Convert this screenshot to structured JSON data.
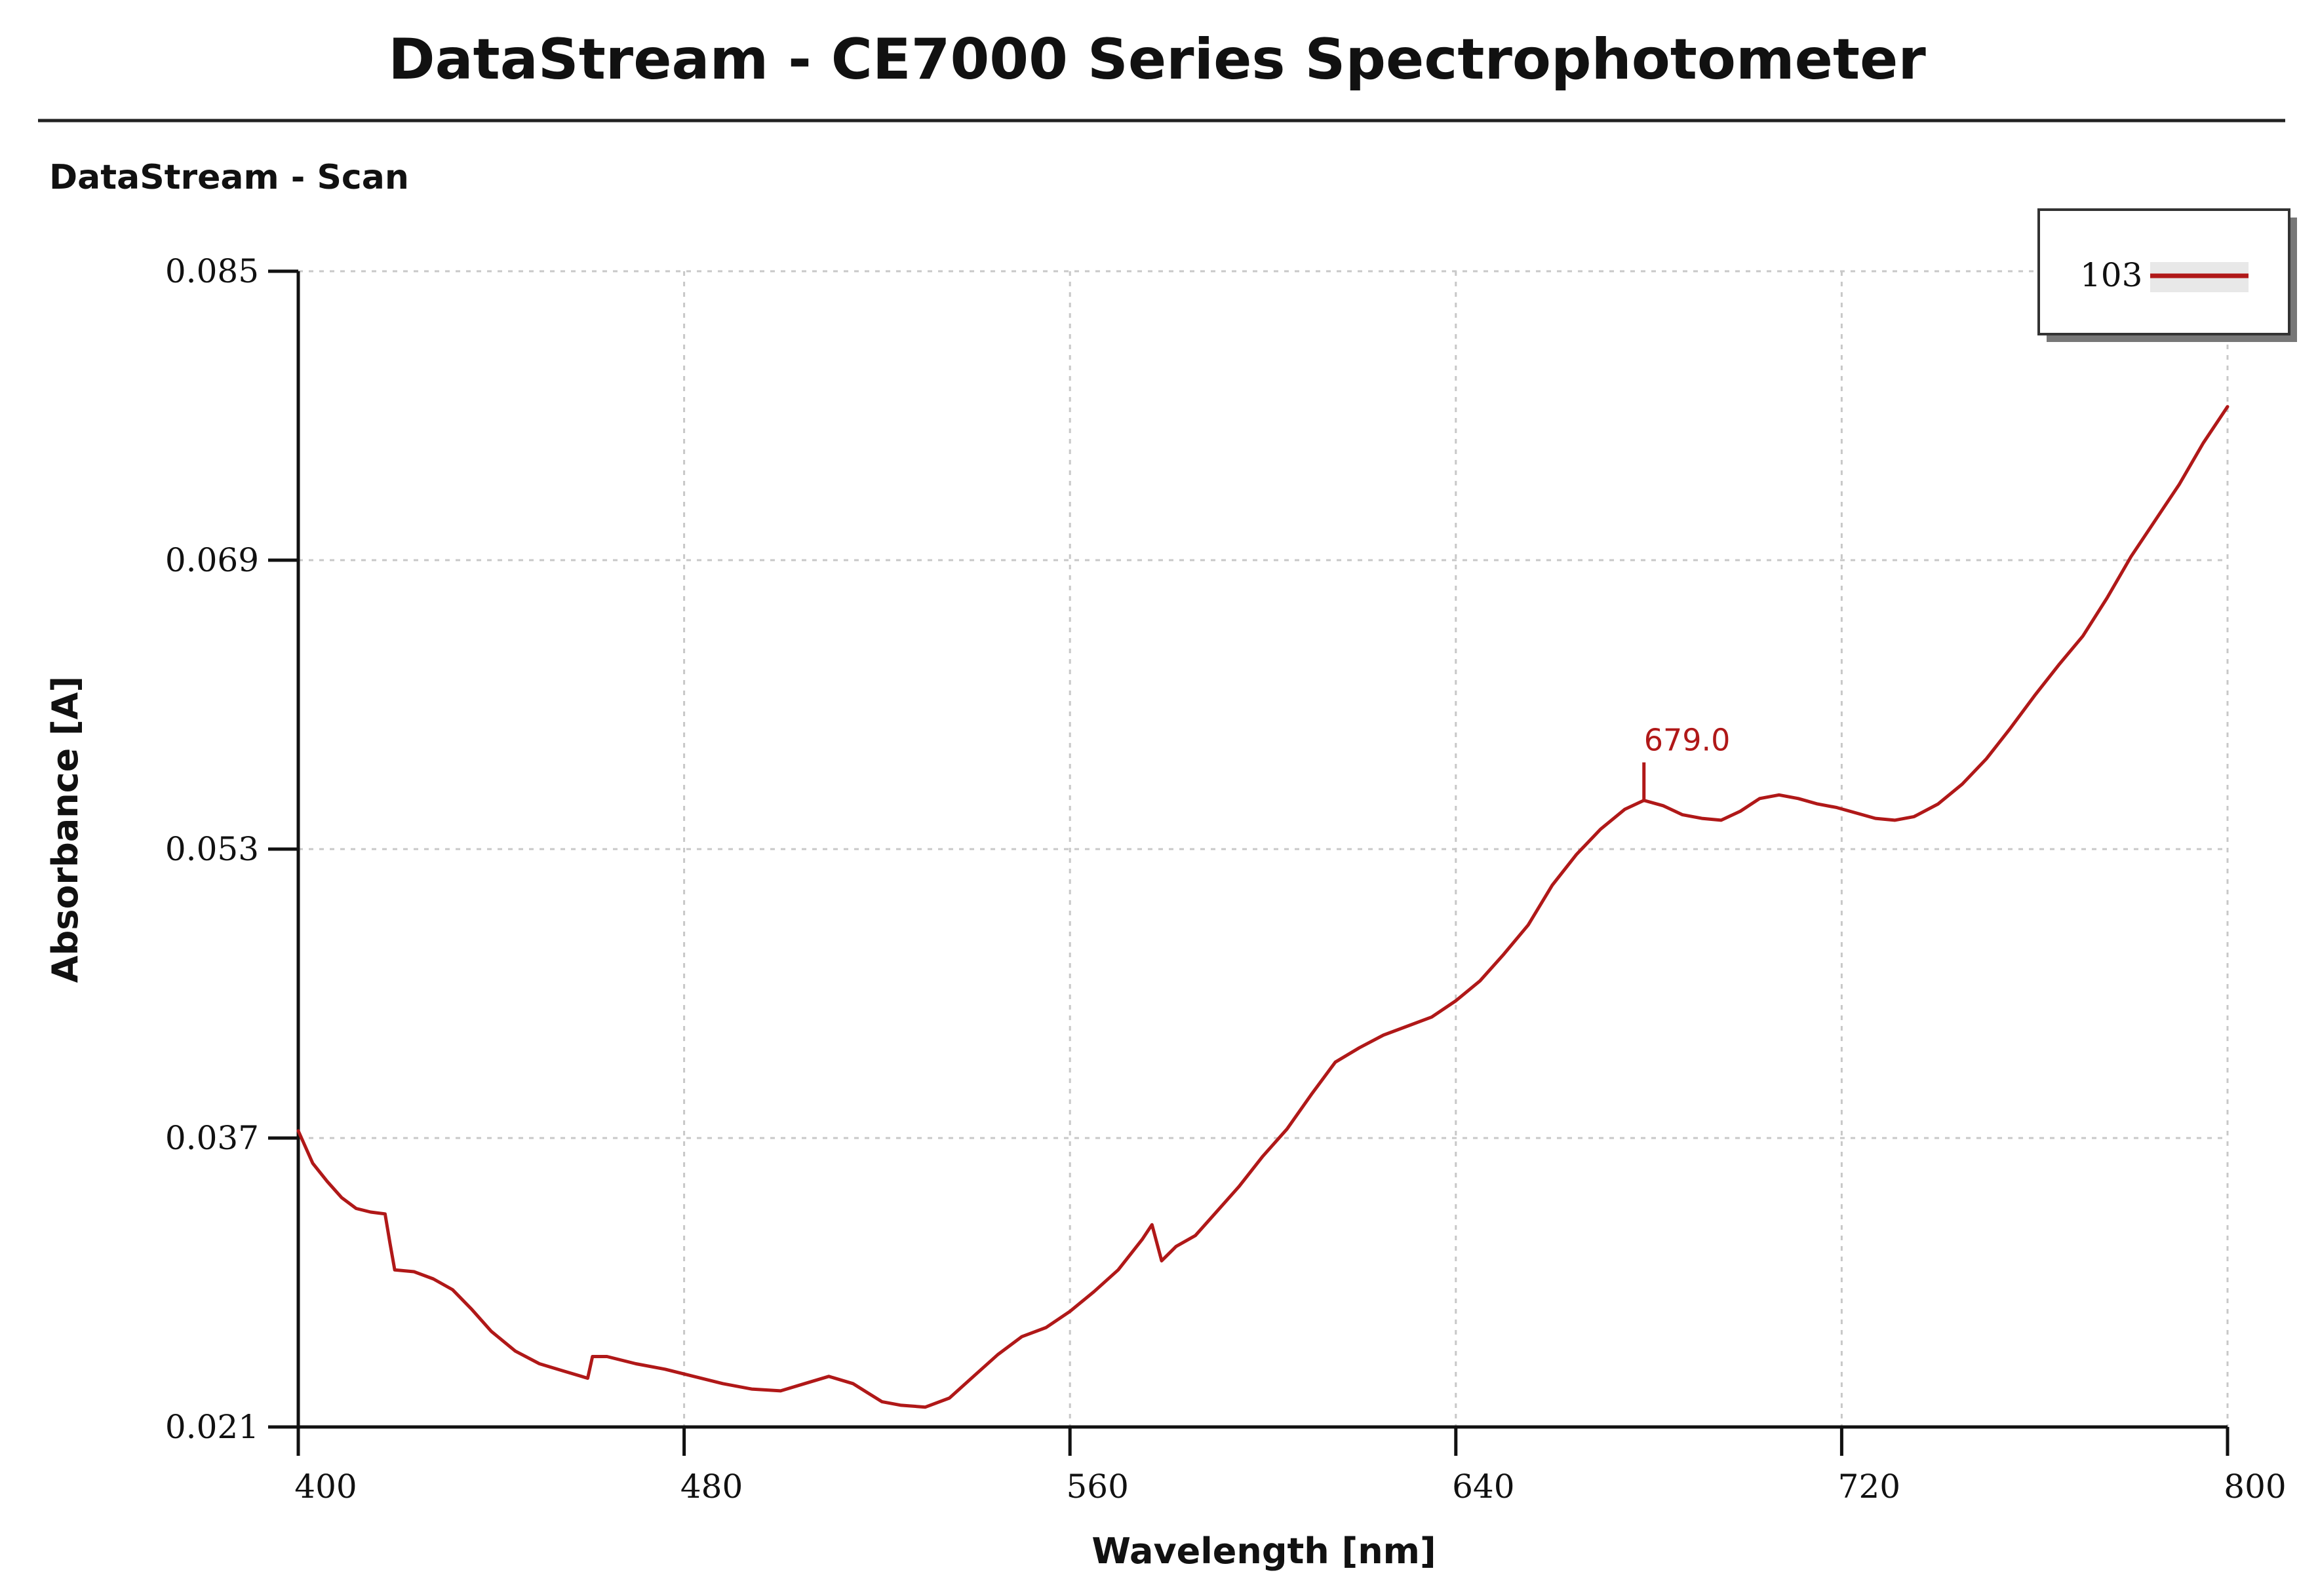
{
  "header": {
    "title": "DataStream - CE7000 Series Spectrophotometer",
    "subtitle": "DataStream - Scan"
  },
  "colors": {
    "series": "#b01818",
    "grid": "#c8c8c8",
    "axis": "#111111"
  },
  "chart_data": {
    "type": "line",
    "title": "DataStream - Scan",
    "xlabel": "Wavelength [nm]",
    "ylabel": "Absorbance [A]",
    "xlim": [
      400,
      800
    ],
    "ylim": [
      0.021,
      0.085
    ],
    "x_ticks": [
      400,
      480,
      560,
      640,
      720,
      800
    ],
    "x_tick_labels": [
      "400",
      "480",
      "560",
      "640",
      "720",
      "800"
    ],
    "y_ticks": [
      0.021,
      0.037,
      0.053,
      0.069,
      0.085
    ],
    "y_tick_labels": [
      "0.021",
      "0.037",
      "0.053",
      "0.069",
      "0.085"
    ],
    "grid": true,
    "legend": {
      "position": "top-right",
      "entries": [
        "103"
      ]
    },
    "series": [
      {
        "name": "103",
        "x": [
          400,
          403,
          406,
          409,
          412,
          415,
          418,
          419,
          420,
          424,
          428,
          432,
          436,
          440,
          445,
          450,
          455,
          460,
          461,
          464,
          470,
          476,
          482,
          488,
          494,
          500,
          505,
          510,
          515,
          518,
          521,
          525,
          530,
          535,
          540,
          545,
          550,
          555,
          560,
          565,
          570,
          575,
          577,
          579,
          582,
          586,
          590,
          595,
          600,
          605,
          610,
          615,
          620,
          625,
          630,
          635,
          640,
          645,
          650,
          655,
          660,
          665,
          670,
          675,
          679,
          683,
          687,
          691,
          695,
          699,
          703,
          707,
          711,
          715,
          719,
          723,
          727,
          731,
          735,
          740,
          745,
          750,
          755,
          760,
          765,
          770,
          775,
          780,
          785,
          790,
          795,
          800
        ],
        "values": [
          0.0374,
          0.0356,
          0.0346,
          0.0337,
          0.0331,
          0.0329,
          0.0328,
          0.0312,
          0.0297,
          0.0296,
          0.0292,
          0.0286,
          0.0275,
          0.0263,
          0.0252,
          0.0245,
          0.0241,
          0.0237,
          0.0249,
          0.0249,
          0.0245,
          0.0242,
          0.0238,
          0.0234,
          0.0231,
          0.023,
          0.0234,
          0.0238,
          0.0234,
          0.0229,
          0.0224,
          0.0222,
          0.0221,
          0.0226,
          0.0238,
          0.025,
          0.026,
          0.0265,
          0.0274,
          0.0285,
          0.0297,
          0.0314,
          0.0322,
          0.0302,
          0.031,
          0.0316,
          0.0328,
          0.0343,
          0.036,
          0.0375,
          0.0394,
          0.0412,
          0.042,
          0.0427,
          0.0432,
          0.0437,
          0.0446,
          0.0457,
          0.0472,
          0.0488,
          0.051,
          0.0527,
          0.0541,
          0.0552,
          0.0557,
          0.0554,
          0.0549,
          0.0547,
          0.0546,
          0.0551,
          0.0558,
          0.056,
          0.0558,
          0.0555,
          0.0553,
          0.055,
          0.0547,
          0.0546,
          0.0548,
          0.0555,
          0.0566,
          0.058,
          0.0597,
          0.0615,
          0.0632,
          0.0648,
          0.0669,
          0.0692,
          0.0712,
          0.0732,
          0.0755,
          0.0775
        ]
      }
    ],
    "annotations": [
      {
        "text": "679.0",
        "x": 679,
        "y": 0.0557
      }
    ]
  }
}
